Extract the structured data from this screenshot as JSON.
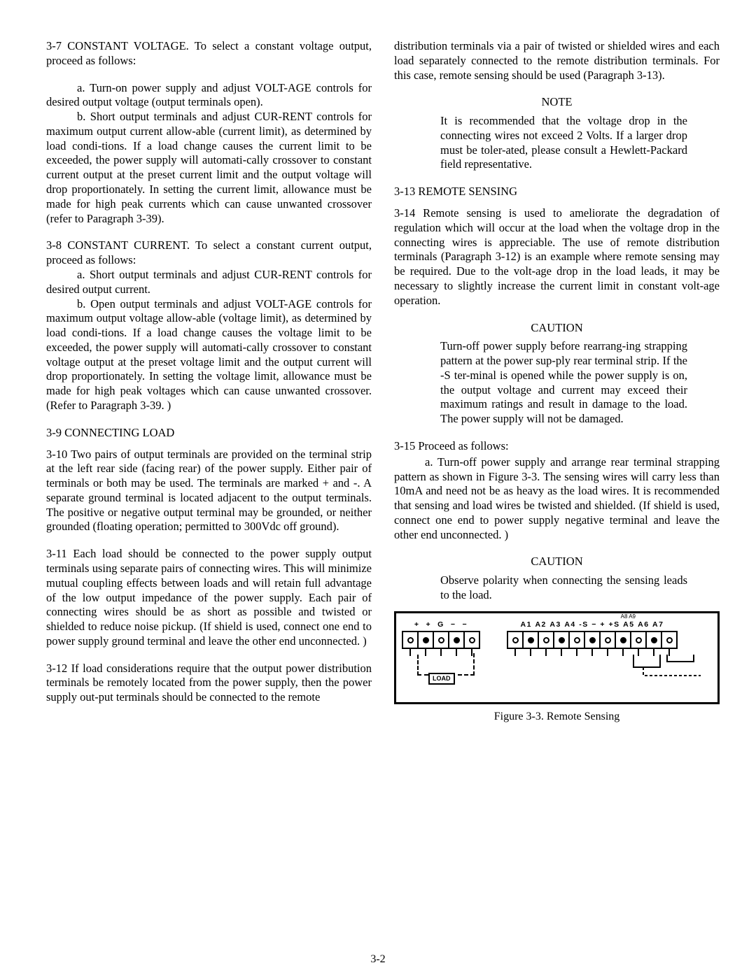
{
  "page_number": "3-2",
  "left": {
    "p3_7": "3-7   CONSTANT VOLTAGE.  To select a constant voltage output, proceed as follows:",
    "p3_7a": "a.   Turn-on power supply and adjust VOLT-AGE controls for desired output voltage (output terminals open).",
    "p3_7b": "b.   Short output terminals and adjust CUR-RENT controls for maximum output current allow-able (current limit), as determined by load condi-tions.  If a load change causes the current limit to be exceeded, the power supply will automati-cally crossover to constant current output at the preset current limit and the output voltage will drop proportionately.  In setting the current limit, allowance must be made for high peak currents which can cause unwanted crossover (refer to Paragraph 3-39).",
    "p3_8": "3-8   CONSTANT CURRENT.  To select a constant current output, proceed as follows:",
    "p3_8a": "a.   Short output terminals and adjust CUR-RENT controls for desired output current.",
    "p3_8b": "b.   Open output terminals and adjust VOLT-AGE controls for maximum output voltage allow-able (voltage limit), as determined by load condi-tions.  If a load change causes the voltage limit to be exceeded, the power supply will automati-cally crossover to constant voltage output at the preset voltage limit and the output current will drop proportionately.  In setting the voltage limit, allowance must be made for high peak voltages which can cause unwanted crossover.  (Refer to Paragraph 3-39. )",
    "p3_9": "3-9   CONNECTING LOAD",
    "p3_10": "3-10  Two pairs of output terminals are provided on the terminal strip at the left rear side (facing rear) of the power supply.  Either pair of terminals or both may be used.  The terminals are marked + and -.  A separate ground terminal is located adjacent to the output terminals.  The positive or negative output terminal may be grounded, or neither grounded (floating operation; permitted to 300Vdc off ground).",
    "p3_11": "3-11  Each load should be connected to the power supply output terminals using separate pairs of connecting wires.  This will minimize mutual coupling effects between loads and will retain full advantage of the low output impedance of the power supply.  Each pair of connecting wires should be as short as possible and twisted or shielded to reduce noise pickup.  (If shield is used, connect one end to power supply ground terminal and leave the other end unconnected. )",
    "p3_12": "3-12  If load considerations require that the output power distribution terminals be remotely located from the power supply, then the power supply out-put terminals should be connected to the remote"
  },
  "right": {
    "p3_12c": "distribution terminals via a pair of twisted or shielded wires and each load separately connected to the remote distribution terminals.  For this case, remote sensing should be used (Paragraph 3-13).",
    "note_hdr": "NOTE",
    "note_body": "It is recommended that the voltage drop in the connecting wires not exceed 2 Volts.  If a larger drop must be toler-ated, please consult a Hewlett-Packard field representative.",
    "p3_13": "3-13  REMOTE SENSING",
    "p3_14": "3-14  Remote sensing is used to ameliorate the degradation of regulation which will occur at the load when the voltage drop in the connecting wires is appreciable.  The use of remote distribution terminals (Paragraph 3-12) is an example where remote sensing may be required.  Due to the volt-age drop in the load leads, it may be necessary to slightly increase the current limit in constant volt-age operation.",
    "caution1_hdr": "CAUTION",
    "caution1_body": "Turn-off power supply before rearrang-ing strapping pattern at the power sup-ply rear terminal strip.  If the -S ter-minal is opened while the power supply is on, the output voltage and current may exceed their maximum ratings and result in damage to the load.  The power supply will not be damaged.",
    "p3_15": "3-15  Proceed as follows:",
    "p3_15a": "a.   Turn-off power supply and arrange rear terminal strapping pattern as shown in Figure 3-3.  The sensing wires will carry less than 10mA and need not be as heavy as the load wires.  It is recommended that sensing and load wires be twisted and shielded.  (If shield is used, connect one end to power supply negative terminal and leave the other end unconnected. )",
    "caution2_hdr": "CAUTION",
    "caution2_body": "Observe polarity when connecting the sensing leads to the load.",
    "figure": {
      "left_labels": [
        "+",
        "+",
        "G",
        "−",
        "−"
      ],
      "right_labels_small": [
        "A8",
        "A9"
      ],
      "right_labels": [
        "A1",
        "A2",
        "A3",
        "A4",
        "-S",
        "−",
        "+",
        "+S",
        "A5",
        "A6",
        "A7"
      ],
      "left_pattern": [
        "open",
        "filled",
        "open",
        "filled",
        "open"
      ],
      "right_pattern": [
        "open",
        "filled",
        "open",
        "filled",
        "open",
        "filled",
        "open",
        "filled",
        "open",
        "filled",
        "open"
      ],
      "load_label": "LOAD",
      "caption": "Figure 3-3.  Remote Sensing"
    }
  }
}
